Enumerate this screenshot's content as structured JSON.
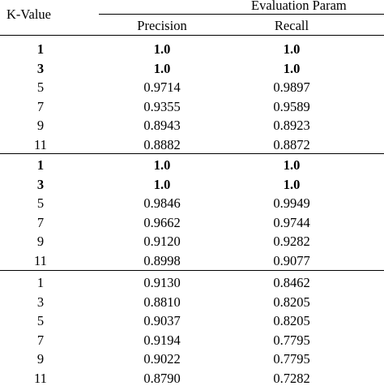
{
  "table": {
    "header": {
      "k_value": "K-Value",
      "group": "Evaluation Param",
      "precision": "Precision",
      "recall": "Recall"
    },
    "sections": [
      {
        "rows": [
          {
            "k": "1",
            "precision": "1.0",
            "recall": "1.0",
            "bold": true
          },
          {
            "k": "3",
            "precision": "1.0",
            "recall": "1.0",
            "bold": true
          },
          {
            "k": "5",
            "precision": "0.9714",
            "recall": "0.9897",
            "bold": false
          },
          {
            "k": "7",
            "precision": "0.9355",
            "recall": "0.9589",
            "bold": false
          },
          {
            "k": "9",
            "precision": "0.8943",
            "recall": "0.8923",
            "bold": false
          },
          {
            "k": "11",
            "precision": "0.8882",
            "recall": "0.8872",
            "bold": false
          }
        ]
      },
      {
        "rows": [
          {
            "k": "1",
            "precision": "1.0",
            "recall": "1.0",
            "bold": true
          },
          {
            "k": "3",
            "precision": "1.0",
            "recall": "1.0",
            "bold": true
          },
          {
            "k": "5",
            "precision": "0.9846",
            "recall": "0.9949",
            "bold": false
          },
          {
            "k": "7",
            "precision": "0.9662",
            "recall": "0.9744",
            "bold": false
          },
          {
            "k": "9",
            "precision": "0.9120",
            "recall": "0.9282",
            "bold": false
          },
          {
            "k": "11",
            "precision": "0.8998",
            "recall": "0.9077",
            "bold": false
          }
        ]
      },
      {
        "rows": [
          {
            "k": "1",
            "precision": "0.9130",
            "recall": "0.8462",
            "bold": false
          },
          {
            "k": "3",
            "precision": "0.8810",
            "recall": "0.8205",
            "bold": false
          },
          {
            "k": "5",
            "precision": "0.9037",
            "recall": "0.8205",
            "bold": false
          },
          {
            "k": "7",
            "precision": "0.9194",
            "recall": "0.7795",
            "bold": false
          },
          {
            "k": "9",
            "precision": "0.9022",
            "recall": "0.7795",
            "bold": false
          },
          {
            "k": "11",
            "precision": "0.8790",
            "recall": "0.7282",
            "bold": false
          }
        ]
      }
    ]
  }
}
